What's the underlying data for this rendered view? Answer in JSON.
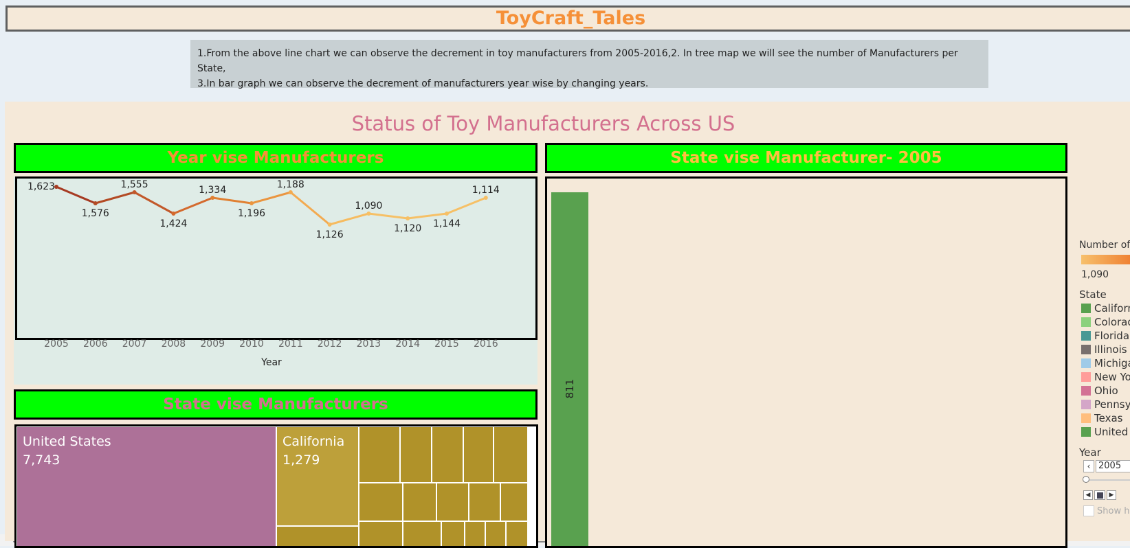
{
  "page_title": "ToyCraft_Tales",
  "description": {
    "line1": "1.From the above line chart we can observe the decrement in toy manufacturers from 2005-2016,2. In tree map we will see the number of Manufacturers per State,",
    "line2": "3.In bar graph we can observe the decrement of manufacturers year wise by changing years."
  },
  "dashboard": {
    "title": "Status of Toy Manufacturers Across US",
    "line_header": "Year vise Manufacturers",
    "tree_header": "State vise Manufacturers",
    "bar_header": "State vise Manufacturer- 2005"
  },
  "colors": {
    "header_green": "#00ff00",
    "orange_text": "#f59038",
    "pink_text": "#d3708e",
    "panel_bg": "#f5e9d9"
  },
  "legend": {
    "number_title": "Number of",
    "number_min": "1,090",
    "state_title": "State",
    "states": [
      {
        "label": "Californ",
        "color": "#59a14f"
      },
      {
        "label": "Colorad",
        "color": "#8cd17d"
      },
      {
        "label": "Florida",
        "color": "#499894"
      },
      {
        "label": "Illinois",
        "color": "#79706e"
      },
      {
        "label": "Michiga",
        "color": "#a0cbe8"
      },
      {
        "label": "New Yo",
        "color": "#ff9d9a"
      },
      {
        "label": "Ohio",
        "color": "#d37295"
      },
      {
        "label": "Pennsy",
        "color": "#d4a6c8"
      },
      {
        "label": "Texas",
        "color": "#ffbe7d"
      },
      {
        "label": "United",
        "color": "#59a14f"
      }
    ],
    "year_title": "Year",
    "year_value": "2005",
    "show_history": "Show h"
  },
  "chart_data": [
    {
      "type": "line",
      "x": [
        "2005",
        "2006",
        "2007",
        "2008",
        "2009",
        "2010",
        "2011",
        "2012",
        "2013",
        "2014",
        "2015",
        "2016"
      ],
      "values": [
        1623,
        1576,
        1555,
        1424,
        1334,
        1196,
        1188,
        1126,
        1090,
        1120,
        1144,
        1114
      ],
      "labels": [
        "1,623",
        "1,576",
        "1,555",
        "1,424",
        "1,334",
        "1,196",
        "1,188",
        "1,126",
        "1,090",
        "1,120",
        "1,144",
        "1,114"
      ],
      "xlabel": "Year"
    },
    {
      "type": "treemap",
      "items": [
        {
          "name": "United States",
          "value": 7743,
          "label": "7,743"
        },
        {
          "name": "California",
          "value": 1279,
          "label": "1,279"
        }
      ]
    },
    {
      "type": "bar",
      "categories": [
        "California"
      ],
      "values": [
        811
      ],
      "labels": [
        "811"
      ]
    }
  ]
}
